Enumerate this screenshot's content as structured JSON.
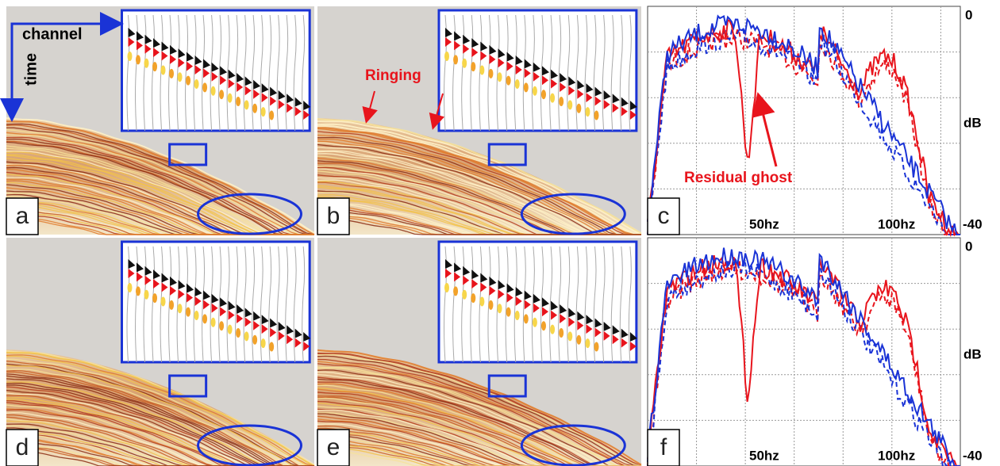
{
  "panels": [
    "a",
    "b",
    "c",
    "d",
    "e",
    "f"
  ],
  "annotations": {
    "channel": "channel",
    "time": "time",
    "ringing": "Ringing",
    "residual_ghost": "Residual ghost"
  },
  "spectrum_axis": {
    "top": 0,
    "unit": "dB",
    "bottom": -40,
    "x_labels": [
      "50hz",
      "100hz"
    ]
  }
}
